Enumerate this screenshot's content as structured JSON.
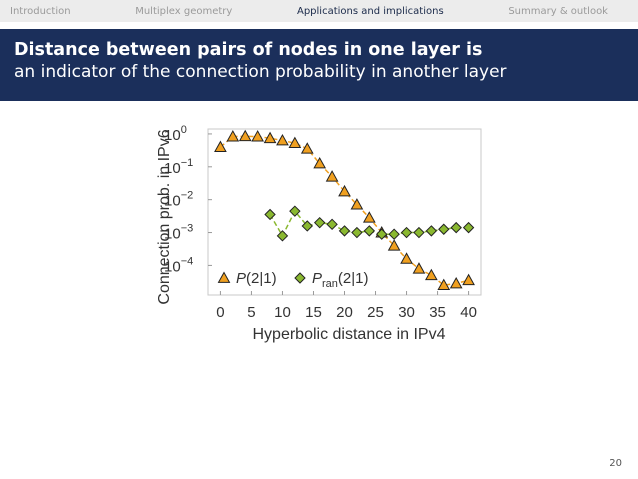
{
  "nav": {
    "items": [
      {
        "label": "Introduction",
        "active": false
      },
      {
        "label": "Multiplex geometry",
        "active": false
      },
      {
        "label": "Applications and implications",
        "active": true
      },
      {
        "label": "Summary & outlook",
        "active": false
      }
    ]
  },
  "slide": {
    "title_line1": "Distance between pairs of nodes in one layer is",
    "title_line2": "an indicator of the connection probability in another layer",
    "page_number": "20"
  },
  "colors": {
    "header_bg": "#1b2f5b",
    "nav_bg": "#ececec",
    "series1": "#f0a020",
    "series2": "#8ab830"
  },
  "chart_data": {
    "type": "scatter",
    "xlabel": "Hyperbolic distance in IPv4",
    "ylabel": "Connection prob. in IPv6",
    "xlim": [
      -2,
      42
    ],
    "xticks": [
      "0",
      "5",
      "10",
      "15",
      "20",
      "25",
      "30",
      "35",
      "40"
    ],
    "ylim_log10": [
      -4.9,
      0.15
    ],
    "log_y": true,
    "yticks": [
      {
        "base": "10",
        "exp": "0"
      },
      {
        "base": "10",
        "exp": "−1"
      },
      {
        "base": "10",
        "exp": "−2"
      },
      {
        "base": "10",
        "exp": "−3"
      },
      {
        "base": "10",
        "exp": "−4"
      }
    ],
    "legend_position": "bottom-left",
    "series": [
      {
        "name": "P(2|1)",
        "legend_main": "P",
        "legend_sub": "",
        "legend_tail": "(2|1)",
        "marker": "triangle",
        "color": "#f0a020",
        "x": [
          0,
          2,
          4,
          6,
          8,
          10,
          12,
          14,
          16,
          18,
          20,
          22,
          24,
          26,
          28,
          30,
          32,
          34,
          36,
          38,
          40
        ],
        "y_log10": [
          -0.4,
          -0.08,
          -0.07,
          -0.08,
          -0.13,
          -0.2,
          -0.28,
          -0.45,
          -0.9,
          -1.3,
          -1.75,
          -2.15,
          -2.55,
          -3.0,
          -3.4,
          -3.8,
          -4.1,
          -4.3,
          -4.6,
          -4.55,
          -4.45
        ]
      },
      {
        "name": "Pran(2|1)",
        "legend_main": "P",
        "legend_sub": "ran",
        "legend_tail": "(2|1)",
        "marker": "diamond",
        "color": "#8ab830",
        "x": [
          8,
          10,
          12,
          14,
          16,
          18,
          20,
          22,
          24,
          26,
          28,
          30,
          32,
          34,
          36,
          38,
          40
        ],
        "y_log10": [
          -2.45,
          -3.1,
          -2.35,
          -2.8,
          -2.7,
          -2.75,
          -2.95,
          -3.0,
          -2.95,
          -3.05,
          -3.05,
          -3.0,
          -3.0,
          -2.95,
          -2.9,
          -2.85,
          -2.85
        ]
      }
    ]
  }
}
